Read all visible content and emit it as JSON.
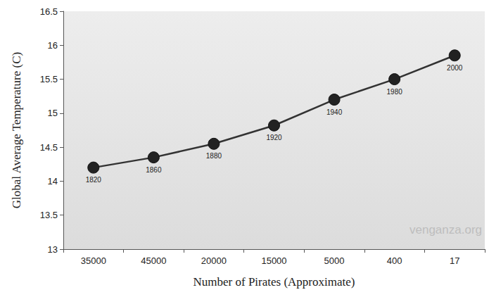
{
  "chart_data": {
    "type": "line",
    "x_label": "Number of Pirates (Approximate)",
    "y_label": "Global Average Temperature (C)",
    "categories": [
      "35000",
      "45000",
      "20000",
      "15000",
      "5000",
      "400",
      "17"
    ],
    "values": [
      14.2,
      14.35,
      14.55,
      14.82,
      15.2,
      15.5,
      15.85
    ],
    "annotations": [
      "1820",
      "1860",
      "1880",
      "1920",
      "1940",
      "1980",
      "2000"
    ],
    "credit": "venganza.org",
    "color": "#333333",
    "marker": "circle",
    "ylim": [
      13,
      16.5
    ],
    "yticks": [
      13,
      13.5,
      14,
      14.5,
      15,
      15.5,
      16,
      16.5
    ],
    "grid": false
  }
}
